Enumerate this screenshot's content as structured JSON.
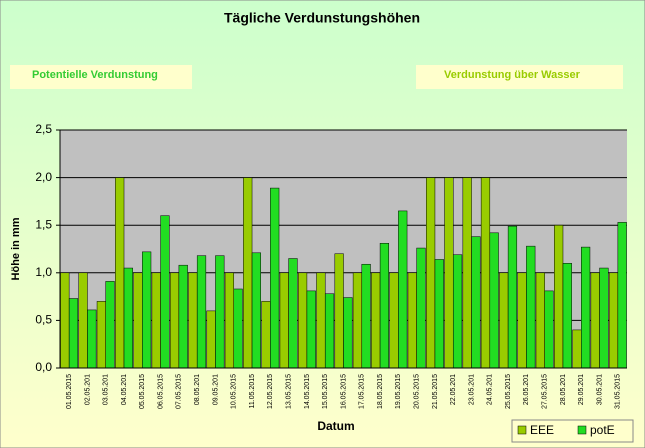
{
  "chart_data": {
    "type": "bar",
    "title": "Tägliche Verdunstungshöhen",
    "annotations": [
      "Potentielle Verdunstung",
      "Verdunstung über Wasser"
    ],
    "x_label": "Datum",
    "y_label": "Höhe in mm",
    "categories": [
      "01.05.2015",
      "02.05.201",
      "03.05.201",
      "04.05.201",
      "05.05.2015",
      "06.05.2015",
      "07.05.2015",
      "08.05.201",
      "09.05.201",
      "10.05.2015",
      "11.05.2015",
      "12.05.2015",
      "13.05.2015",
      "14.05.2015",
      "15.05.2015",
      "16.05.2015",
      "17.05.2015",
      "18.05.2015",
      "19.05.2015",
      "20.05.2015",
      "21.05.2015",
      "22.05.201",
      "23.05.201",
      "24.05.201",
      "25.05.2015",
      "26.05.201",
      "27.05.2015",
      "28.05.201",
      "29.05.201",
      "30.05.201",
      "31.05.2015"
    ],
    "series": [
      {
        "name": "EEE",
        "color": "#99cc00",
        "values": [
          1.0,
          1.0,
          0.7,
          2.0,
          1.0,
          1.0,
          1.0,
          1.0,
          0.6,
          1.0,
          2.0,
          0.7,
          1.0,
          1.0,
          1.0,
          1.2,
          1.0,
          1.0,
          1.0,
          1.0,
          2.0,
          2.0,
          2.0,
          2.0,
          1.0,
          1.0,
          1.0,
          1.5,
          0.4,
          1.0,
          1.0
        ]
      },
      {
        "name": "potE",
        "color": "#22dd22",
        "values": [
          0.73,
          0.61,
          0.91,
          1.05,
          1.22,
          1.6,
          1.08,
          1.18,
          1.18,
          0.83,
          1.21,
          1.89,
          1.15,
          0.81,
          0.78,
          0.74,
          1.09,
          1.31,
          1.65,
          1.26,
          1.14,
          1.19,
          1.38,
          1.42,
          1.49,
          1.28,
          0.81,
          1.1,
          1.27,
          1.05,
          1.53
        ]
      }
    ],
    "ylim": [
      0,
      2.5
    ],
    "yticks": [
      {
        "value": 0,
        "label": "0,0"
      },
      {
        "value": 0.5,
        "label": "0,5"
      },
      {
        "value": 1,
        "label": "1,0"
      },
      {
        "value": 1.5,
        "label": "1,5"
      },
      {
        "value": 2,
        "label": "2,0"
      },
      {
        "value": 2.5,
        "label": "2,5"
      }
    ],
    "grid": true,
    "legend": "bottom-right"
  }
}
